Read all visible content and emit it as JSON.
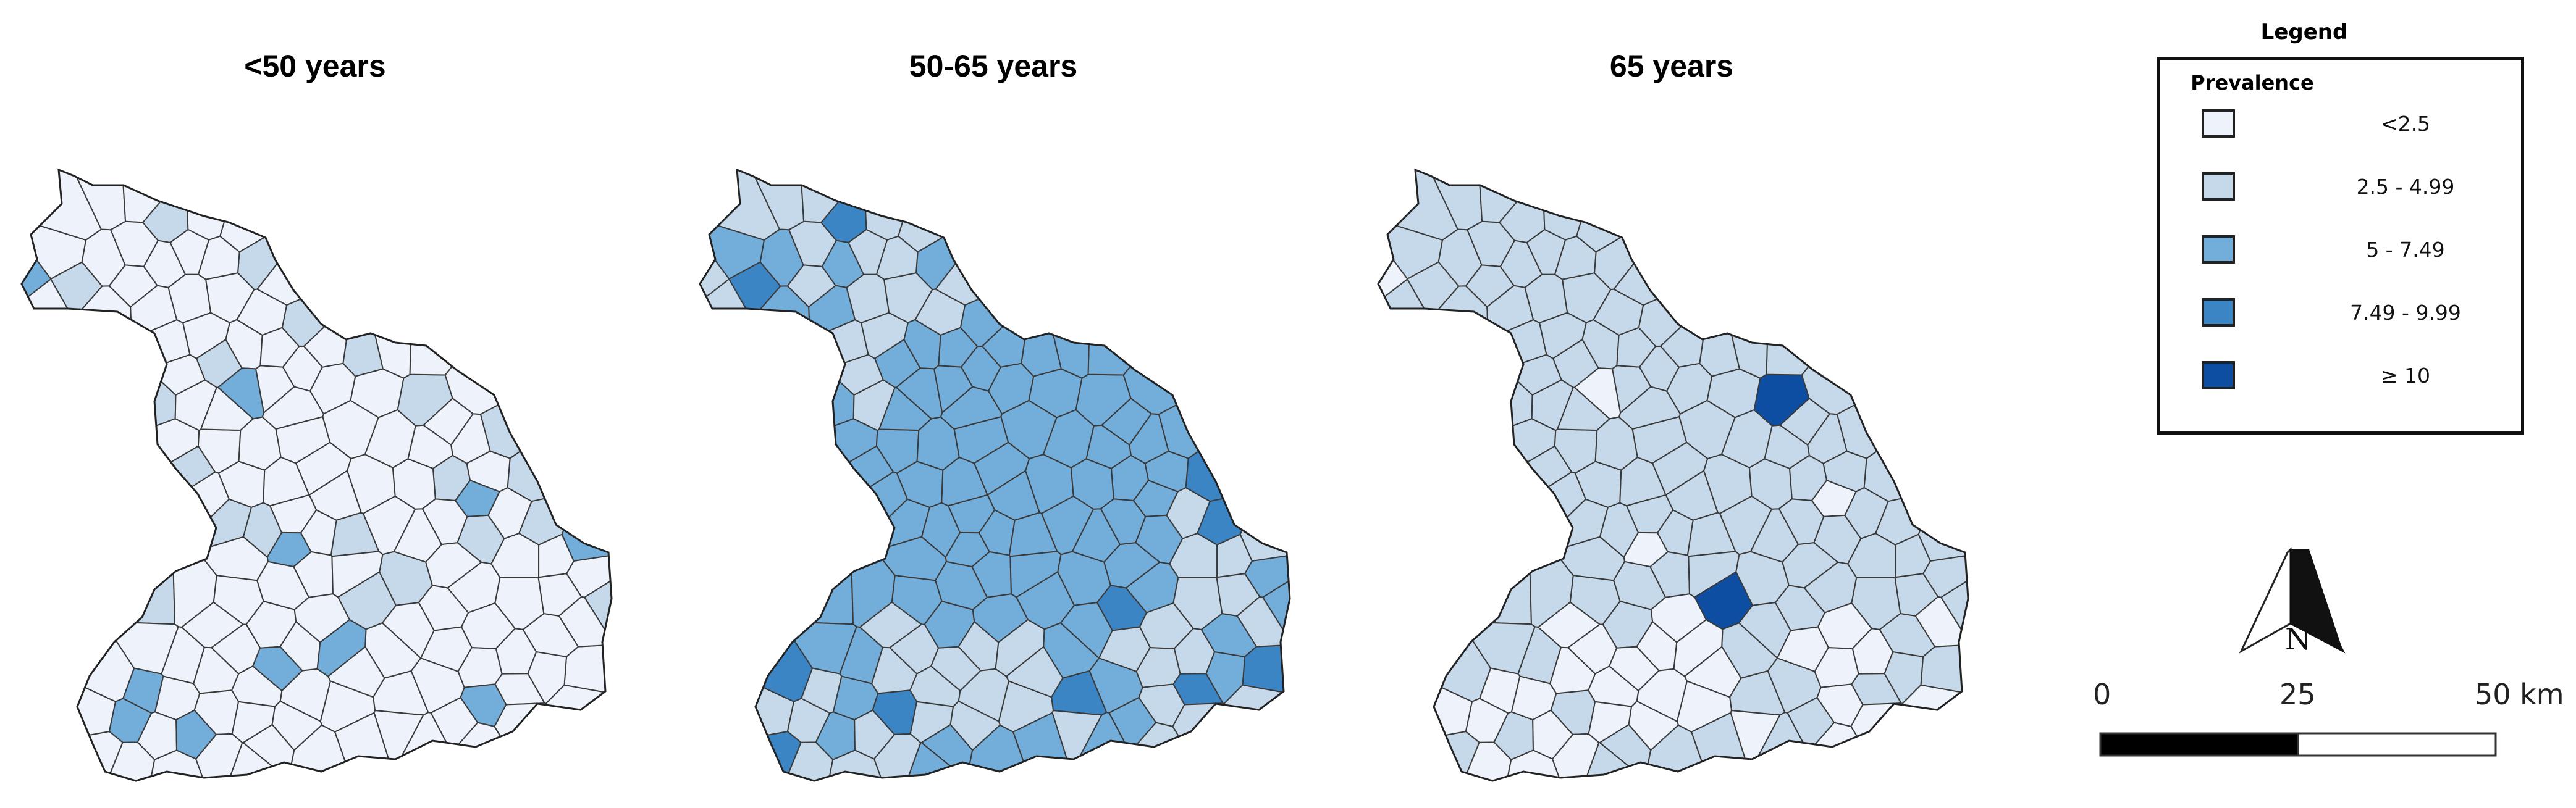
{
  "maps": [
    {
      "title": "<50 years"
    },
    {
      "title": "50-65 years"
    },
    {
      "title": "65 years"
    }
  ],
  "legend": {
    "heading": "Legend",
    "subtitle": "Prevalence",
    "classes": [
      {
        "label": "<2.5",
        "color": "#eef3fb"
      },
      {
        "label": "2.5 - 4.99",
        "color": "#c5d9ea"
      },
      {
        "label": "5 - 7.49",
        "color": "#73add9"
      },
      {
        "label": "7.49 - 9.99",
        "color": "#3c85c5"
      },
      {
        "label": "≥ 10",
        "color": "#0d4ea3"
      }
    ]
  },
  "north_arrow": {
    "label": "N"
  },
  "scale_bar": {
    "ticks": [
      "0",
      "25",
      "50 km"
    ]
  },
  "colors": {
    "boundary": "#3a3a3a",
    "outline": "#222222",
    "background": "#ffffff"
  }
}
